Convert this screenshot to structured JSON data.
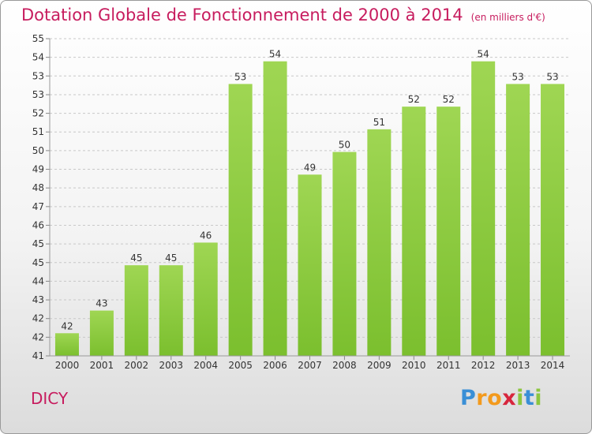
{
  "chart_data": {
    "type": "bar",
    "title": "Dotation Globale de Fonctionnement de 2000 à 2014",
    "subtitle": "(en milliers d'€)",
    "categories": [
      "2000",
      "2001",
      "2002",
      "2003",
      "2004",
      "2005",
      "2006",
      "2007",
      "2008",
      "2009",
      "2010",
      "2011",
      "2012",
      "2013",
      "2014"
    ],
    "values": [
      42,
      43,
      45,
      45,
      46,
      53,
      54,
      49,
      50,
      51,
      52,
      52,
      54,
      53,
      53
    ],
    "bar_labels": [
      "42",
      "43",
      "45",
      "45",
      "46",
      "53",
      "54",
      "49",
      "50",
      "51",
      "52",
      "52",
      "54",
      "53",
      "53"
    ],
    "ylim": [
      41,
      55
    ],
    "y_ticks": [
      "41",
      "42",
      "42",
      "43",
      "44",
      "45",
      "45",
      "46",
      "47",
      "48",
      "49",
      "50",
      "51",
      "52",
      "53",
      "53",
      "54",
      "55"
    ],
    "grid": true,
    "bar_color": "#7bbf2e",
    "bar_color_light": "#9fd653",
    "xlabel": "",
    "ylabel": ""
  },
  "footer": {
    "town": "DICY",
    "brand_letters": [
      "P",
      "r",
      "o",
      "x",
      "i",
      "t",
      "i"
    ],
    "brand_colors": [
      "#3a8fd6",
      "#f39a1d",
      "#f39a1d",
      "#d7263d",
      "#8cc63f",
      "#3a8fd6",
      "#8cc63f"
    ]
  },
  "colors": {
    "title": "#c71c5e",
    "grid": "#c8c8c8"
  }
}
